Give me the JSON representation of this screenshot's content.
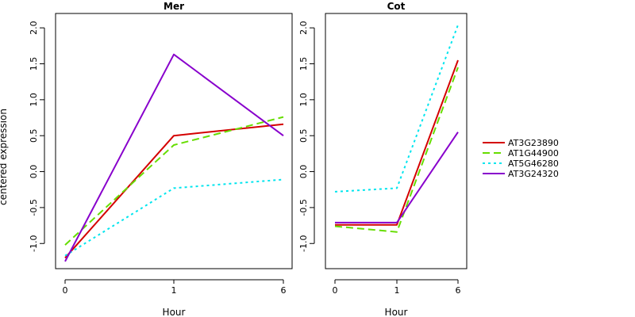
{
  "chart_data": {
    "type": "line",
    "ylabel": "centered expression",
    "ylim": [
      -1.35,
      2.2
    ],
    "yticks": [
      "-1.0",
      "-0.5",
      "0.0",
      "0.5",
      "1.0",
      "1.5",
      "2.0"
    ],
    "categories": [
      "0",
      "1",
      "6"
    ],
    "legend_placement": "right",
    "series_styles": [
      {
        "color": "#d40000",
        "dash": ""
      },
      {
        "color": "#66dd00",
        "dash": "9,5"
      },
      {
        "color": "#00e5ee",
        "dash": "3,4"
      },
      {
        "color": "#8800cc",
        "dash": ""
      }
    ],
    "panels": [
      {
        "title": "Mer",
        "xlabel": "Hour",
        "series": [
          {
            "name": "AT3G23890",
            "values": [
              -1.2,
              0.5,
              0.66
            ]
          },
          {
            "name": "AT1G44900",
            "values": [
              -1.02,
              0.37,
              0.76
            ]
          },
          {
            "name": "AT5G46280",
            "values": [
              -1.17,
              -0.23,
              -0.11
            ]
          },
          {
            "name": "AT3G24320",
            "values": [
              -1.25,
              1.63,
              0.5
            ]
          }
        ]
      },
      {
        "title": "Cot",
        "xlabel": "Hour",
        "series": [
          {
            "name": "AT3G23890",
            "values": [
              -0.74,
              -0.74,
              1.55
            ]
          },
          {
            "name": "AT1G44900",
            "values": [
              -0.76,
              -0.84,
              1.45
            ]
          },
          {
            "name": "AT5G46280",
            "values": [
              -0.28,
              -0.23,
              2.04
            ]
          },
          {
            "name": "AT3G24320",
            "values": [
              -0.71,
              -0.71,
              0.55
            ]
          }
        ]
      }
    ]
  }
}
